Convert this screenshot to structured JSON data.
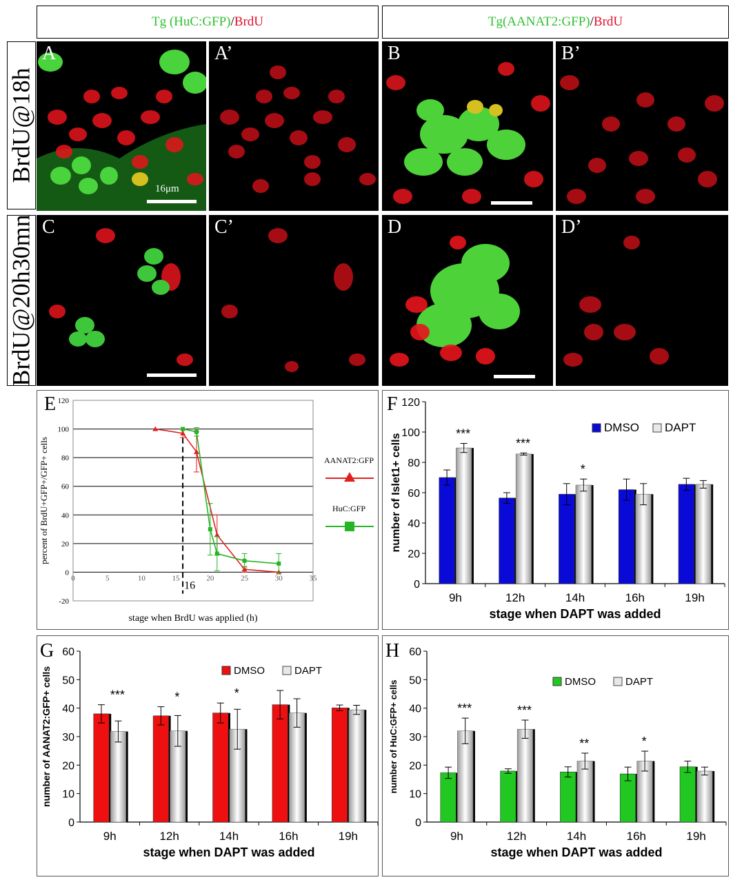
{
  "headers": {
    "left": {
      "tg": "Tg (HuC:GFP)",
      "sep": "/ ",
      "brdu": "BrdU"
    },
    "right": {
      "tg": "Tg(AANAT2:GFP)",
      "sep": "/ ",
      "brdu": "BrdU"
    }
  },
  "rows": {
    "top": "BrdU@18h",
    "bottom": "BrdU@20h30mn"
  },
  "panels": {
    "A": "A",
    "A2": "A’",
    "B": "B",
    "B2": "B’",
    "C": "C",
    "C2": "C’",
    "D": "D",
    "D2": "D’"
  },
  "scale_label": "16μm",
  "colors": {
    "red": "#e8141c",
    "green": "#2ec72e",
    "blue": "#0a0ad8",
    "aanat": "#e02020",
    "huc": "#25b525"
  },
  "chart_data": [
    {
      "id": "E",
      "type": "line",
      "letter": "E",
      "xlabel": "stage when BrdU was applied (h)",
      "ylabel": "percent of BrdU+GFP+/GFP+ cells",
      "xlim": [
        0,
        35
      ],
      "ylim": [
        -20,
        120
      ],
      "xticks": [
        0,
        5,
        10,
        15,
        20,
        25,
        30,
        35
      ],
      "yticks": [
        -20,
        0,
        20,
        40,
        60,
        80,
        100,
        120
      ],
      "marker_label": "16",
      "marker_x": 16,
      "series": [
        {
          "name": "AANAT2:GFP",
          "color": "#e02020",
          "marker": "triangle",
          "x": [
            12,
            16,
            18,
            21,
            25,
            30
          ],
          "y": [
            100,
            97,
            84,
            26,
            2,
            0
          ],
          "err": [
            0,
            3,
            14,
            14,
            2,
            0
          ]
        },
        {
          "name": "HuC:GFP",
          "color": "#25b525",
          "marker": "square",
          "x": [
            16,
            18,
            20,
            21,
            25,
            30
          ],
          "y": [
            100,
            98,
            30,
            13,
            8,
            6
          ],
          "err": [
            0,
            3,
            18,
            12,
            5,
            7
          ]
        }
      ]
    },
    {
      "id": "F",
      "type": "bar",
      "letter": "F",
      "ylabel": "number of Islet1+ cells",
      "xlabel": "stage when DAPT was added",
      "categories": [
        "9h",
        "12h",
        "14h",
        "16h",
        "19h"
      ],
      "ylim": [
        0,
        120
      ],
      "yticks": [
        0,
        20,
        40,
        60,
        80,
        100,
        120
      ],
      "series": [
        {
          "name": "DMSO",
          "color": "#0a0ad8",
          "values": [
            70,
            56.5,
            59,
            62,
            65.5
          ],
          "err": [
            5,
            3.5,
            7,
            7,
            4
          ]
        },
        {
          "name": "DAPT",
          "color": "#cccccc",
          "values": [
            89.5,
            85.5,
            65,
            59,
            65.5
          ],
          "err": [
            3,
            0.7,
            4,
            7,
            2.5
          ]
        }
      ],
      "significance": [
        "***",
        "***",
        "*",
        "",
        ""
      ]
    },
    {
      "id": "G",
      "type": "bar",
      "letter": "G",
      "ylabel": "number of AANAT2:GFP+ cells",
      "xlabel": "stage when DAPT was added",
      "categories": [
        "9h",
        "12h",
        "14h",
        "16h",
        "19h"
      ],
      "ylim": [
        0,
        60
      ],
      "yticks": [
        0,
        10,
        20,
        30,
        40,
        50,
        60
      ],
      "series": [
        {
          "name": "DMSO",
          "color": "#ee1010",
          "values": [
            38,
            37.3,
            38.3,
            41.2,
            40.1
          ],
          "err": [
            3.2,
            3.2,
            3.5,
            5,
            1
          ]
        },
        {
          "name": "DAPT",
          "color": "#cccccc",
          "values": [
            31.8,
            32,
            32.6,
            38.3,
            39.4
          ],
          "err": [
            3.7,
            5.4,
            7,
            5,
            1.6
          ]
        }
      ],
      "significance": [
        "***",
        "*",
        "*",
        "",
        ""
      ]
    },
    {
      "id": "H",
      "type": "bar",
      "letter": "H",
      "ylabel": "number of HuC:GFP+ cells",
      "xlabel": "stage when DAPT was added",
      "categories": [
        "9h",
        "12h",
        "14h",
        "16h",
        "19h"
      ],
      "ylim": [
        0,
        60
      ],
      "yticks": [
        0,
        10,
        20,
        30,
        40,
        50,
        60
      ],
      "series": [
        {
          "name": "DMSO",
          "color": "#22c822",
          "values": [
            17.3,
            17.9,
            17.6,
            16.9,
            19.4
          ],
          "err": [
            2,
            0.8,
            1.8,
            2.4,
            2
          ]
        },
        {
          "name": "DAPT",
          "color": "#cccccc",
          "values": [
            32,
            32.6,
            21.4,
            21.4,
            17.9
          ],
          "err": [
            4.5,
            3.2,
            2.8,
            3.5,
            1.4
          ]
        }
      ],
      "significance": [
        "***",
        "***",
        "**",
        "*",
        ""
      ]
    }
  ]
}
